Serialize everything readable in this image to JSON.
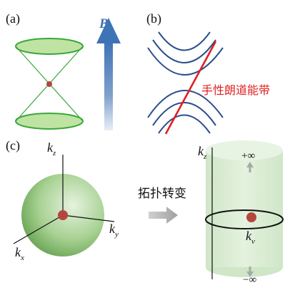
{
  "panels": {
    "a": {
      "label": "(a)"
    },
    "b": {
      "label": "(b)",
      "band_label": "手性朗道能带"
    },
    "c": {
      "label": "(c)"
    }
  },
  "field": {
    "symbol": "B"
  },
  "axes_left": {
    "kz": "k",
    "kz_sub": "z",
    "ky": "k",
    "ky_sub": "y",
    "kx": "k",
    "kx_sub": "x"
  },
  "transform": {
    "label": "拓扑转变"
  },
  "cylinder": {
    "kz": "k",
    "kz_sub": "z",
    "kv": "k",
    "kv_sub": "v",
    "plus_inf": "+∞",
    "minus_inf": "−∞"
  },
  "colors": {
    "cone_fill": "#bfe3a2",
    "cone_edge": "#3aa73a",
    "dot": "#b5463e",
    "arrow_blue": "#3e74b6",
    "landau_line": "#2b4f8c",
    "chiral_line": "#e02020",
    "chiral_text": "#e02020",
    "sphere": "#78b55c",
    "cylinder_fill": "#d7ecd0",
    "gray_arrow": "#a9a9a9"
  }
}
